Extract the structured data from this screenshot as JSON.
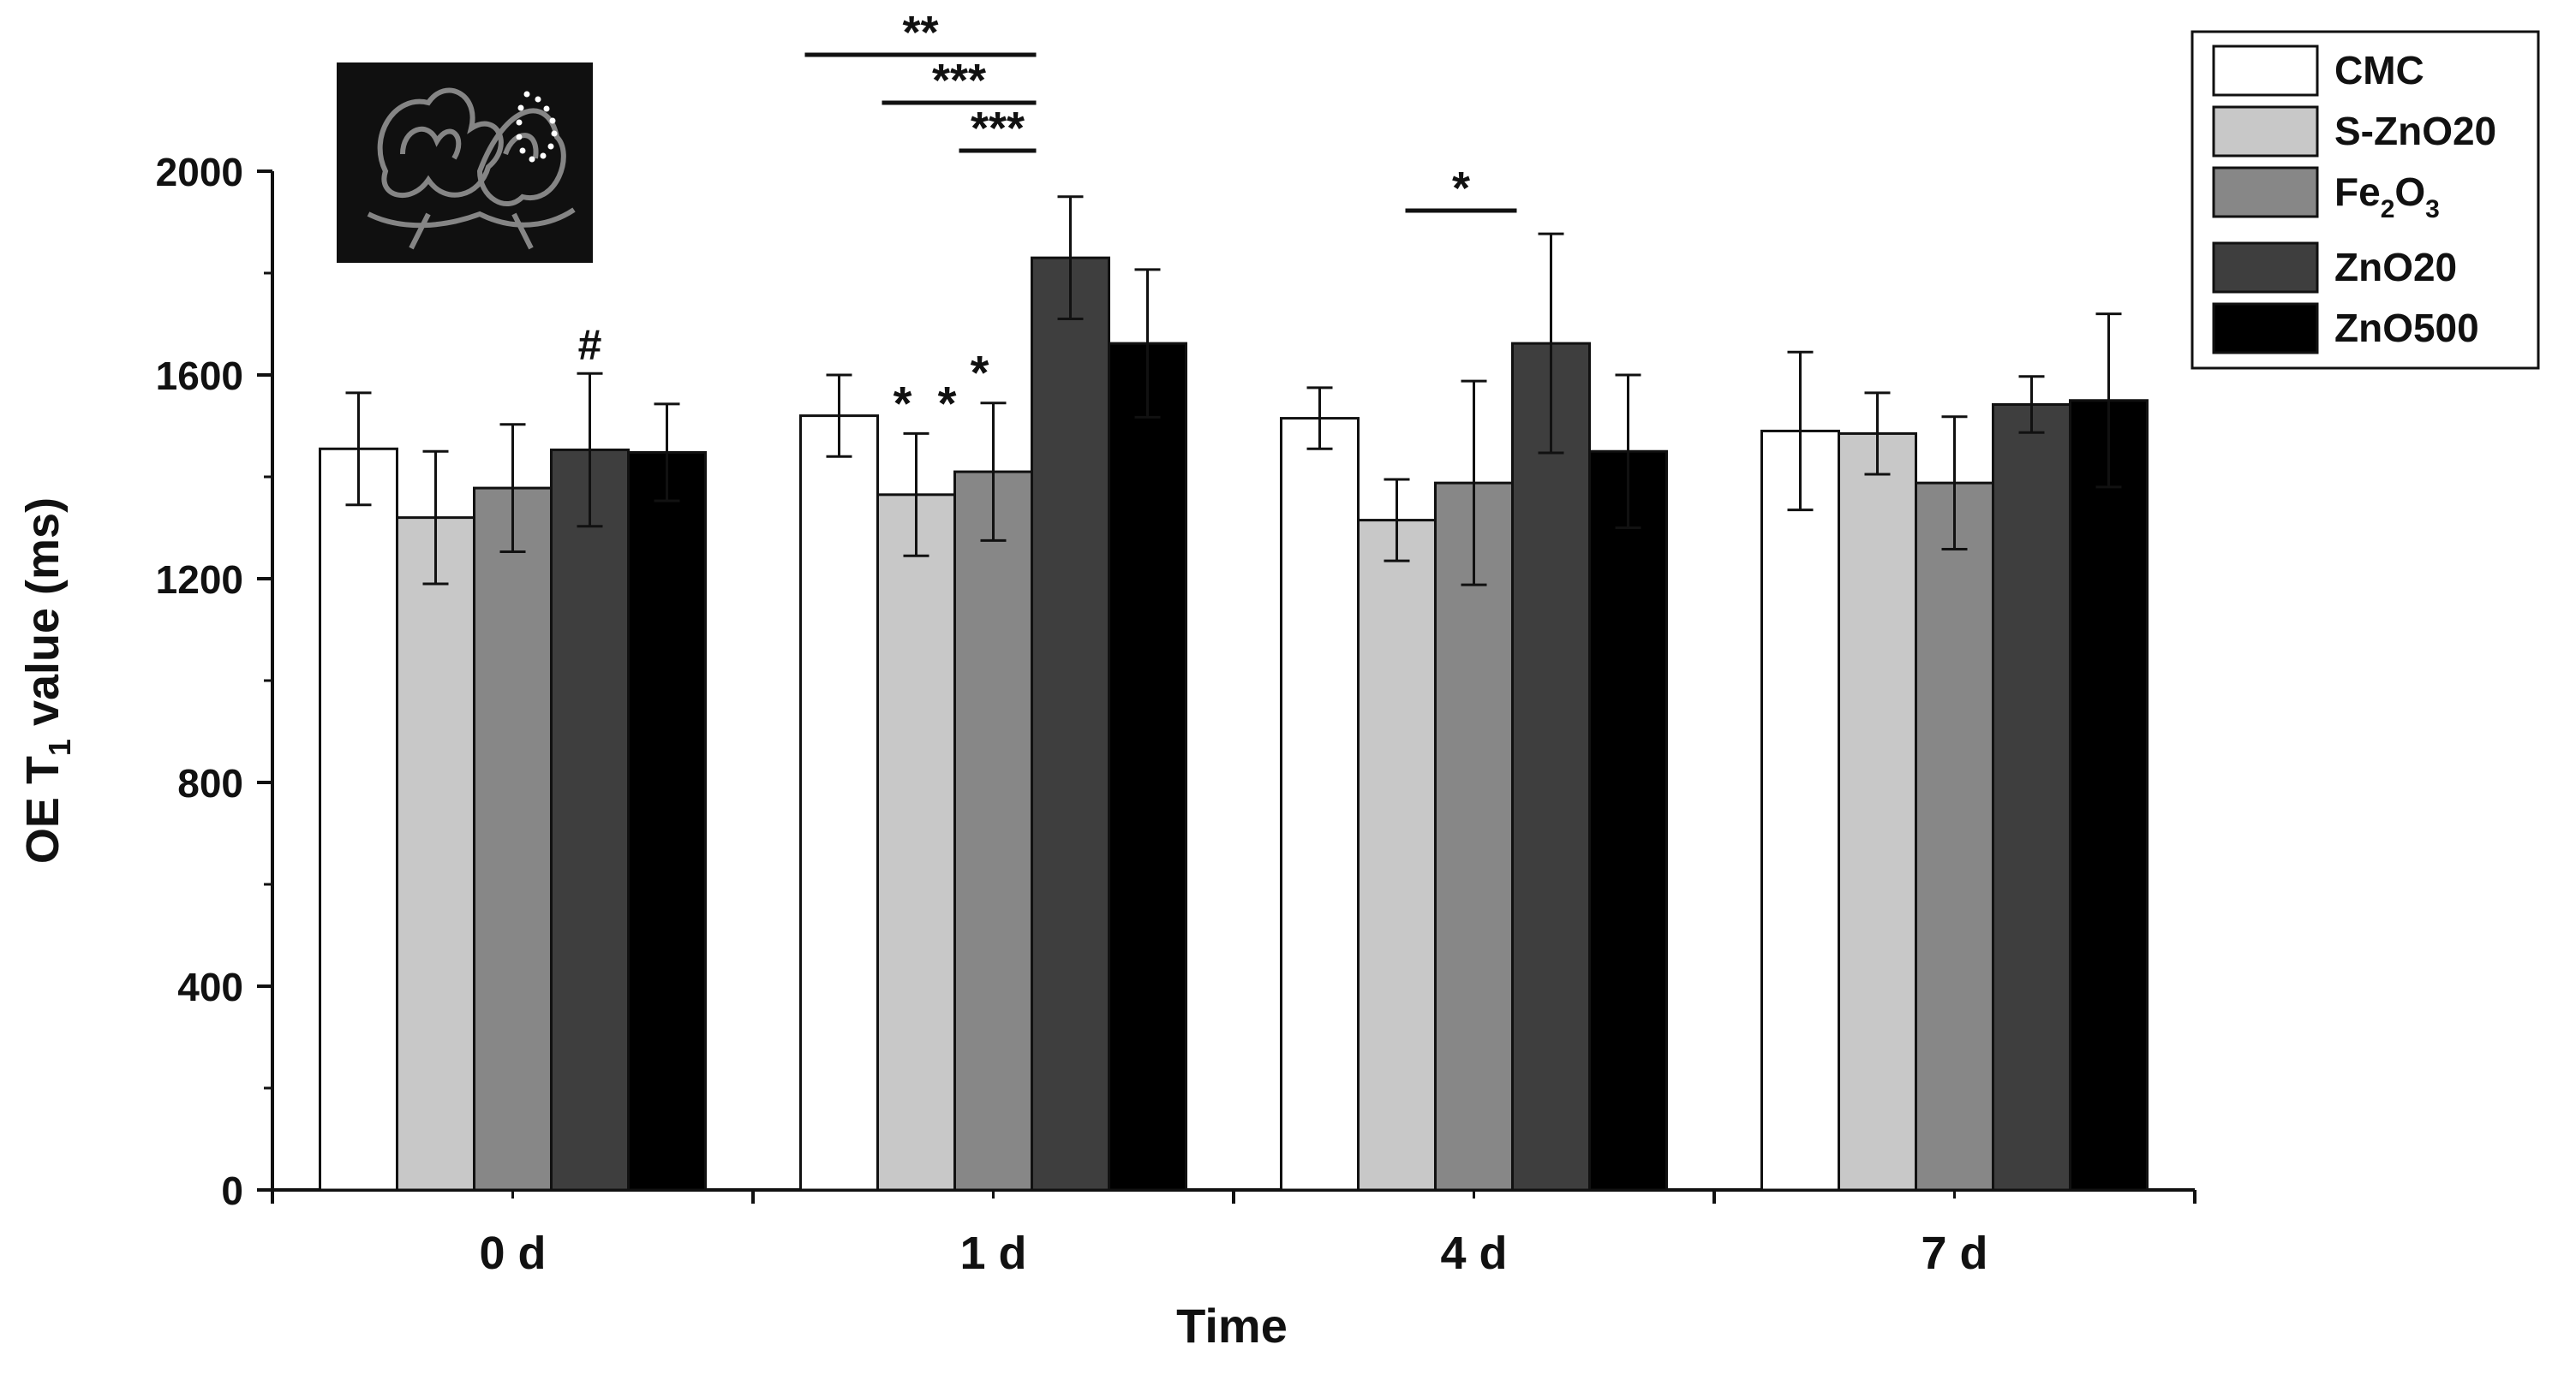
{
  "chart_data": {
    "type": "bar",
    "title": "",
    "xlabel": "Time",
    "ylabel": "OE T1 value (ms)",
    "ylabel_parts": {
      "pre": "OE T",
      "sub": "1",
      "post": " value (ms)"
    },
    "ylim": [
      0,
      2000
    ],
    "yticks": [
      "0",
      "400",
      "800",
      "1200",
      "1600",
      "2000"
    ],
    "categories": [
      "0 d",
      "1 d",
      "4 d",
      "7 d"
    ],
    "series": [
      {
        "name": "CMC",
        "color": "#ffffff",
        "values": [
          1455,
          1520,
          1515,
          1490
        ],
        "errors": [
          110,
          80,
          60,
          155
        ]
      },
      {
        "name": "S-ZnO20",
        "color": "#c8c8c8",
        "values": [
          1320,
          1365,
          1315,
          1485
        ],
        "errors": [
          130,
          120,
          80,
          80
        ]
      },
      {
        "name": "Fe2O3",
        "color": "#878787",
        "values": [
          1378,
          1410,
          1388,
          1388
        ],
        "errors": [
          125,
          135,
          200,
          130
        ]
      },
      {
        "name": "ZnO20",
        "color": "#3e3e3e",
        "values": [
          1453,
          1830,
          1662,
          1542
        ],
        "errors": [
          150,
          120,
          215,
          55
        ]
      },
      {
        "name": "ZnO500",
        "color": "#000000",
        "values": [
          1448,
          1662,
          1450,
          1550
        ],
        "errors": [
          95,
          145,
          150,
          170
        ]
      }
    ],
    "legend": {
      "position": "top-right",
      "entries": [
        {
          "label": "CMC"
        },
        {
          "label": "S-ZnO20"
        },
        {
          "label_pre": "Fe",
          "sub1": "2",
          "mid": "O",
          "sub2": "3"
        },
        {
          "label": "ZnO20"
        },
        {
          "label": "ZnO500"
        }
      ]
    },
    "annotations": {
      "group_marks": [
        {
          "text": "#",
          "category": 0,
          "series": 3
        },
        {
          "text": "*",
          "category": 1,
          "series": 1
        },
        {
          "text": "*",
          "category": 1,
          "series": 1
        },
        {
          "text": "*",
          "category": 1,
          "series": 2
        }
      ],
      "brackets": [
        {
          "text": "**",
          "category": 1,
          "from_series": 0,
          "to_series": 3
        },
        {
          "text": "***",
          "category": 1,
          "from_series": 1,
          "to_series": 3
        },
        {
          "text": "***",
          "category": 1,
          "from_series": 2,
          "to_series": 3
        },
        {
          "text": "*",
          "category": 2,
          "from_series": 1,
          "to_series": 3
        }
      ]
    },
    "inset": {
      "description_icon": "mri-brain-slice-image"
    }
  }
}
